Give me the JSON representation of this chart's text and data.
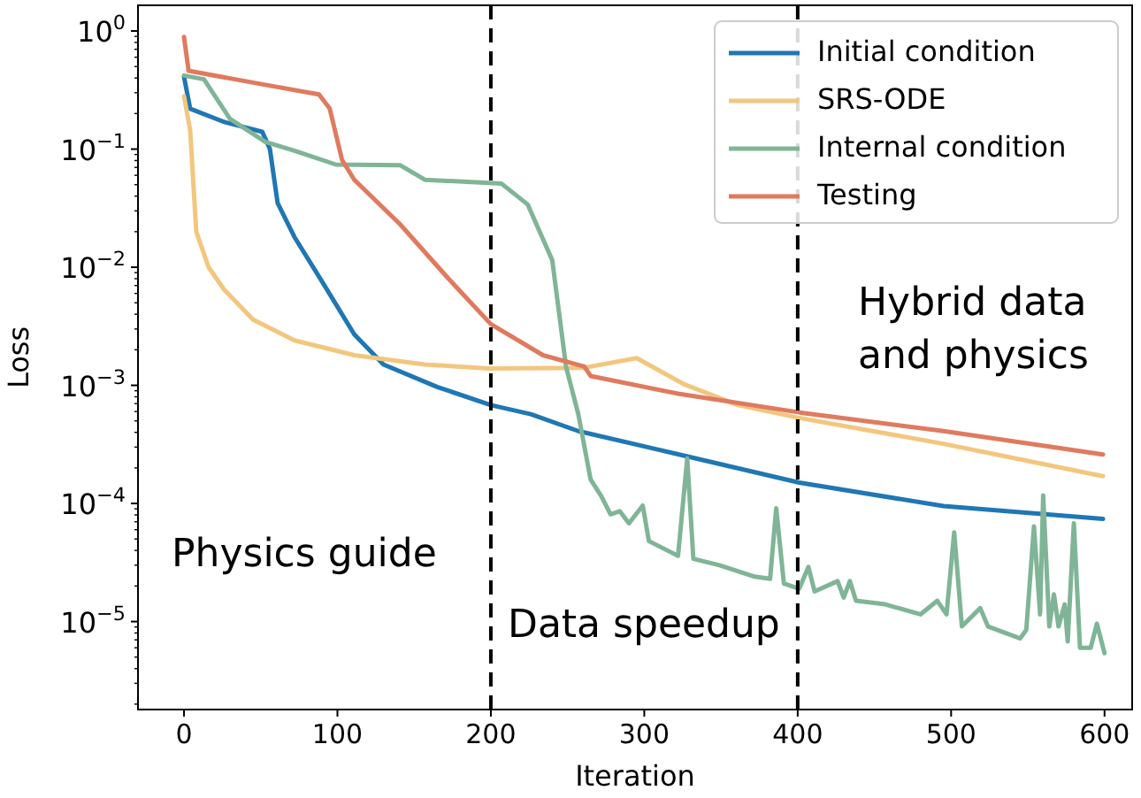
{
  "chart_data": {
    "type": "line",
    "xlabel": "Iteration",
    "ylabel": "Loss",
    "log": "y",
    "xlim": [
      -30,
      618
    ],
    "ylim": [
      1.8e-06,
      1.65
    ],
    "xticks": [
      0,
      100,
      200,
      300,
      400,
      500,
      600
    ],
    "yticks": [
      {
        "value": 1e-05,
        "label": "10$^{−5}$"
      },
      {
        "value": 0.0001,
        "label": "10$^{−4}$"
      },
      {
        "value": 0.001,
        "label": "10$^{−3}$"
      },
      {
        "value": 0.01,
        "label": "10$^{−2}$"
      },
      {
        "value": 0.1,
        "label": "10$^{−1}$"
      },
      {
        "value": 1,
        "label": "10$^{0}$"
      },
      {
        "value": 2e-06,
        "label": null
      },
      {
        "value": 3e-06,
        "label": null
      },
      {
        "value": 4e-06,
        "label": null
      },
      {
        "value": 5e-06,
        "label": null
      },
      {
        "value": 6e-06,
        "label": null
      },
      {
        "value": 7e-06,
        "label": null
      },
      {
        "value": 8e-06,
        "label": null
      },
      {
        "value": 9e-06,
        "label": null
      },
      {
        "value": 2e-05,
        "label": null
      },
      {
        "value": 3e-05,
        "label": null
      },
      {
        "value": 4e-05,
        "label": null
      },
      {
        "value": 5e-05,
        "label": null
      },
      {
        "value": 6e-05,
        "label": null
      },
      {
        "value": 7e-05,
        "label": null
      },
      {
        "value": 8e-05,
        "label": null
      },
      {
        "value": 9e-05,
        "label": null
      },
      {
        "value": 0.0002,
        "label": null
      },
      {
        "value": 0.0003,
        "label": null
      },
      {
        "value": 0.0004,
        "label": null
      },
      {
        "value": 0.0005,
        "label": null
      },
      {
        "value": 0.0006,
        "label": null
      },
      {
        "value": 0.0007,
        "label": null
      },
      {
        "value": 0.0008,
        "label": null
      },
      {
        "value": 0.0009,
        "label": null
      },
      {
        "value": 0.002,
        "label": null
      },
      {
        "value": 0.003,
        "label": null
      },
      {
        "value": 0.004,
        "label": null
      },
      {
        "value": 0.005,
        "label": null
      },
      {
        "value": 0.006,
        "label": null
      },
      {
        "value": 0.007,
        "label": null
      },
      {
        "value": 0.008,
        "label": null
      },
      {
        "value": 0.009,
        "label": null
      },
      {
        "value": 0.02,
        "label": null
      },
      {
        "value": 0.03,
        "label": null
      },
      {
        "value": 0.04,
        "label": null
      },
      {
        "value": 0.05,
        "label": null
      },
      {
        "value": 0.06,
        "label": null
      },
      {
        "value": 0.07,
        "label": null
      },
      {
        "value": 0.08,
        "label": null
      },
      {
        "value": 0.09,
        "label": null
      },
      {
        "value": 0.2,
        "label": null
      },
      {
        "value": 0.3,
        "label": null
      },
      {
        "value": 0.4,
        "label": null
      },
      {
        "value": 0.5,
        "label": null
      },
      {
        "value": 0.6,
        "label": null
      },
      {
        "value": 0.7,
        "label": null
      },
      {
        "value": 0.8,
        "label": null
      },
      {
        "value": 0.9,
        "label": null
      }
    ],
    "grid": false,
    "legend": "top right",
    "marker": "none",
    "line_style": "solid",
    "series": [
      {
        "name": "Initial condition",
        "color": "#1f77b4",
        "x": [
          0,
          4,
          26,
          51,
          56,
          61,
          72,
          91,
          111,
          130,
          165,
          200,
          226,
          257,
          307,
          401,
          495,
          599
        ],
        "values": [
          0.41,
          0.22,
          0.17,
          0.14,
          0.1,
          0.035,
          0.018,
          0.0072,
          0.0027,
          0.0015,
          0.00097,
          0.00068,
          0.00057,
          0.00041,
          0.00029,
          0.00015,
          9.5e-05,
          7.4e-05
        ]
      },
      {
        "name": "SRS-ODE",
        "color": "#f3c67e",
        "x": [
          0,
          4,
          8,
          16,
          26,
          45,
          72,
          111,
          157,
          199,
          261,
          295,
          326,
          361,
          401,
          495,
          599
        ],
        "values": [
          0.28,
          0.145,
          0.02,
          0.01,
          0.0065,
          0.0036,
          0.0024,
          0.0018,
          0.0015,
          0.00139,
          0.00141,
          0.0017,
          0.00102,
          0.00068,
          0.00053,
          0.00032,
          0.00017
        ]
      },
      {
        "name": "Internal condition",
        "color": "#7fb596",
        "x": [
          0,
          13,
          30,
          53,
          72,
          99,
          141,
          157,
          207,
          224,
          240,
          249,
          257,
          265,
          272,
          278,
          284,
          290,
          299,
          303,
          322,
          328,
          332,
          349,
          372,
          382,
          386,
          391,
          401,
          407,
          411,
          426,
          430,
          434,
          438,
          457,
          480,
          491,
          497,
          502,
          507,
          519,
          524,
          545,
          549,
          554,
          558,
          560,
          564,
          567,
          570,
          574,
          576,
          580,
          584,
          591,
          595,
          600
        ],
        "values": [
          0.42,
          0.39,
          0.18,
          0.115,
          0.097,
          0.074,
          0.073,
          0.055,
          0.051,
          0.034,
          0.0115,
          0.00144,
          0.00057,
          0.00016,
          0.000115,
          8.1e-05,
          8.6e-05,
          6.8e-05,
          9.6e-05,
          4.8e-05,
          3.6e-05,
          0.00024,
          3.4e-05,
          3e-05,
          2.4e-05,
          2.3e-05,
          9.1e-05,
          2.1e-05,
          1.9e-05,
          2.9e-05,
          1.8e-05,
          2.2e-05,
          1.6e-05,
          2.2e-05,
          1.5e-05,
          1.4e-05,
          1.15e-05,
          1.5e-05,
          1.15e-05,
          5.7e-05,
          9.1e-06,
          1.3e-05,
          9.1e-06,
          7.2e-06,
          8.5e-06,
          6.4e-05,
          1.15e-05,
          0.000117,
          9.1e-06,
          1.7e-05,
          9.1e-06,
          1.4e-05,
          6.8e-06,
          6.8e-05,
          6e-06,
          6e-06,
          9.6e-06,
          5.4e-06
        ]
      },
      {
        "name": "Testing",
        "color": "#e07a5f",
        "x": [
          0,
          3,
          53,
          88,
          95,
          103,
          111,
          141,
          172,
          200,
          234,
          261,
          265,
          322,
          401,
          495,
          599
        ],
        "values": [
          0.89,
          0.46,
          0.35,
          0.29,
          0.22,
          0.081,
          0.055,
          0.023,
          0.0081,
          0.0033,
          0.0018,
          0.00144,
          0.0012,
          0.00085,
          0.00059,
          0.00041,
          0.00026
        ]
      }
    ],
    "ref_lines": [
      {
        "axis": "x",
        "value": 200,
        "color": "#000000",
        "line_style": "dashed"
      },
      {
        "axis": "x",
        "value": 400,
        "color": "#000000",
        "line_style": "dashed"
      }
    ],
    "annotations": [
      "Physics guide",
      "Data speedup",
      "Hybrid data\nand physics"
    ]
  }
}
